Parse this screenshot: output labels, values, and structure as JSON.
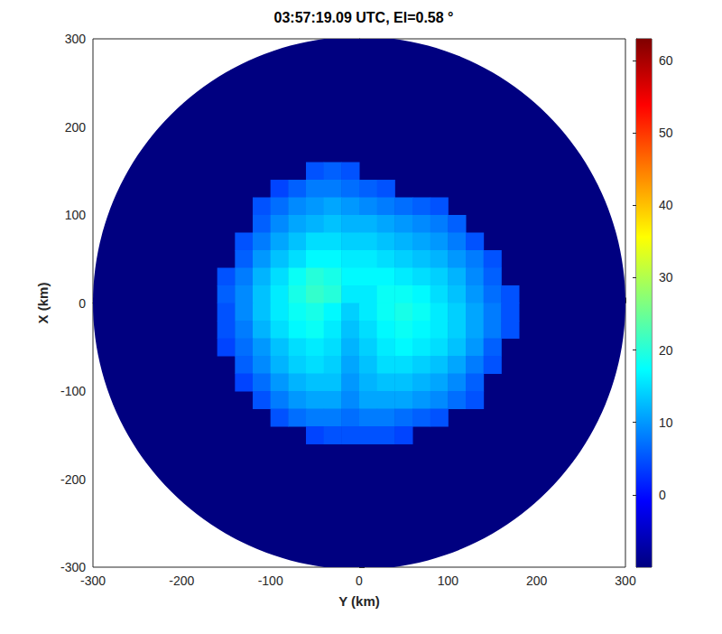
{
  "chart_data": {
    "type": "heatmap",
    "title": "03:57:19.09 UTC, El=0.58 °",
    "xlabel": "Y (km)",
    "ylabel": "X (km)",
    "xlim": [
      -300,
      300
    ],
    "ylim": [
      -300,
      300
    ],
    "xticks": [
      -300,
      -200,
      -100,
      0,
      100,
      200,
      300
    ],
    "yticks": [
      -300,
      -200,
      -100,
      0,
      100,
      200,
      300
    ],
    "coverage_radius": 300,
    "cell_size": 20,
    "x": [
      -170,
      -150,
      -130,
      -110,
      -90,
      -70,
      -50,
      -30,
      -10,
      10,
      30,
      50,
      70,
      90,
      110,
      130,
      150,
      170
    ],
    "y": [
      150,
      130,
      110,
      90,
      70,
      50,
      30,
      10,
      -10,
      -30,
      -50,
      -70,
      -90,
      -110,
      -130,
      -150
    ],
    "z": [
      [
        null,
        null,
        null,
        null,
        null,
        null,
        5,
        6,
        5,
        null,
        null,
        null,
        null,
        null,
        null,
        null,
        null,
        null
      ],
      [
        null,
        null,
        null,
        null,
        4,
        6,
        8,
        8,
        7,
        6,
        5,
        null,
        null,
        null,
        null,
        null,
        null,
        null
      ],
      [
        null,
        null,
        null,
        5,
        7,
        9,
        10,
        11,
        10,
        9,
        8,
        7,
        6,
        5,
        null,
        null,
        null,
        null
      ],
      [
        null,
        null,
        null,
        6,
        9,
        11,
        12,
        13,
        12,
        12,
        11,
        10,
        9,
        8,
        6,
        null,
        null,
        null
      ],
      [
        null,
        null,
        5,
        8,
        11,
        13,
        15,
        15,
        14,
        14,
        13,
        12,
        11,
        10,
        8,
        5,
        null,
        null
      ],
      [
        null,
        null,
        6,
        10,
        13,
        15,
        17,
        17,
        16,
        16,
        15,
        14,
        13,
        12,
        10,
        8,
        5,
        null
      ],
      [
        null,
        5,
        8,
        12,
        15,
        18,
        20,
        19,
        17,
        17,
        17,
        16,
        15,
        14,
        12,
        9,
        6,
        null
      ],
      [
        null,
        6,
        9,
        13,
        16,
        19,
        21,
        20,
        16,
        16,
        18,
        18,
        17,
        15,
        13,
        10,
        7,
        5
      ],
      [
        null,
        5,
        9,
        13,
        16,
        18,
        19,
        17,
        14,
        16,
        18,
        19,
        18,
        16,
        14,
        11,
        8,
        5
      ],
      [
        null,
        5,
        8,
        12,
        15,
        17,
        18,
        16,
        13,
        15,
        17,
        18,
        17,
        16,
        14,
        11,
        8,
        5
      ],
      [
        null,
        4,
        7,
        10,
        13,
        15,
        16,
        15,
        12,
        14,
        16,
        17,
        16,
        15,
        13,
        10,
        6,
        null
      ],
      [
        null,
        null,
        6,
        9,
        12,
        14,
        15,
        14,
        11,
        13,
        15,
        15,
        14,
        13,
        11,
        8,
        5,
        null
      ],
      [
        null,
        null,
        4,
        7,
        10,
        12,
        13,
        13,
        10,
        12,
        13,
        13,
        12,
        11,
        9,
        6,
        null,
        null
      ],
      [
        null,
        null,
        null,
        5,
        8,
        10,
        11,
        11,
        9,
        11,
        11,
        11,
        10,
        9,
        7,
        5,
        null,
        null
      ],
      [
        null,
        null,
        null,
        null,
        5,
        7,
        8,
        8,
        7,
        8,
        8,
        7,
        6,
        5,
        null,
        null,
        null,
        null
      ],
      [
        null,
        null,
        null,
        null,
        null,
        null,
        4,
        5,
        5,
        5,
        5,
        4,
        null,
        null,
        null,
        null,
        null,
        null
      ]
    ],
    "colorbar": {
      "range": [
        -10,
        63
      ],
      "ticks": [
        0,
        10,
        20,
        30,
        40,
        50,
        60
      ]
    }
  }
}
